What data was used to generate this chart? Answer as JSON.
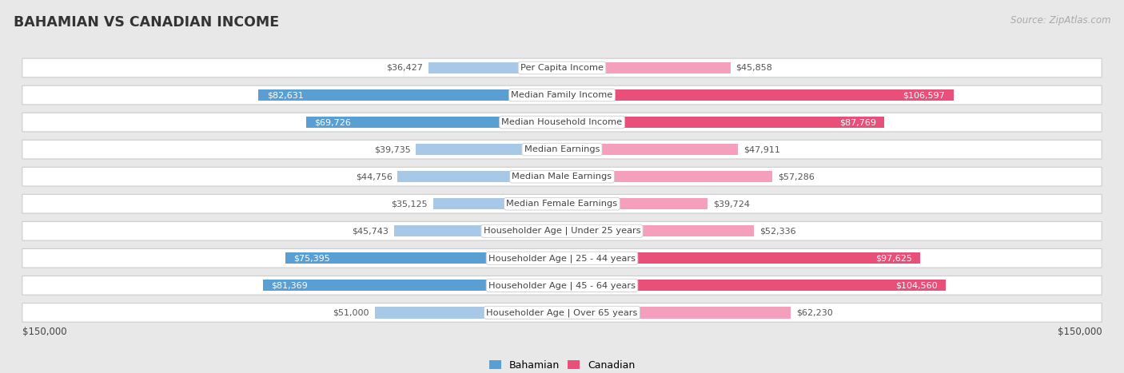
{
  "title": "BAHAMIAN VS CANADIAN INCOME",
  "source": "Source: ZipAtlas.com",
  "categories": [
    "Per Capita Income",
    "Median Family Income",
    "Median Household Income",
    "Median Earnings",
    "Median Male Earnings",
    "Median Female Earnings",
    "Householder Age | Under 25 years",
    "Householder Age | 25 - 44 years",
    "Householder Age | 45 - 64 years",
    "Householder Age | Over 65 years"
  ],
  "bahamian_values": [
    36427,
    82631,
    69726,
    39735,
    44756,
    35125,
    45743,
    75395,
    81369,
    51000
  ],
  "canadian_values": [
    45858,
    106597,
    87769,
    47911,
    57286,
    39724,
    52336,
    97625,
    104560,
    62230
  ],
  "bahamian_labels": [
    "$36,427",
    "$82,631",
    "$69,726",
    "$39,735",
    "$44,756",
    "$35,125",
    "$45,743",
    "$75,395",
    "$81,369",
    "$51,000"
  ],
  "canadian_labels": [
    "$45,858",
    "$106,597",
    "$87,769",
    "$47,911",
    "$57,286",
    "$39,724",
    "$52,336",
    "$97,625",
    "$104,560",
    "$62,230"
  ],
  "bahamian_dark_indices": [
    1,
    2,
    7,
    8
  ],
  "canadian_dark_indices": [
    1,
    2,
    7,
    8
  ],
  "bahamian_color_light": "#a8c8e8",
  "bahamian_color_dark": "#5a9fd4",
  "canadian_color_light": "#f4a0bc",
  "canadian_color_dark": "#e8507a",
  "max_val": 150000,
  "xlabel_left": "$150,000",
  "xlabel_right": "$150,000",
  "legend_bahamian": "Bahamian",
  "legend_canadian": "Canadian",
  "bg_color": "#e8e8e8",
  "row_bg_color": "#ffffff",
  "title_color": "#333333",
  "source_color": "#aaaaaa",
  "label_dark_color": "#555555",
  "label_light_color": "#ffffff",
  "center_box_color": "#ffffff",
  "center_box_edge": "#cccccc",
  "cat_text_color": "#444444"
}
